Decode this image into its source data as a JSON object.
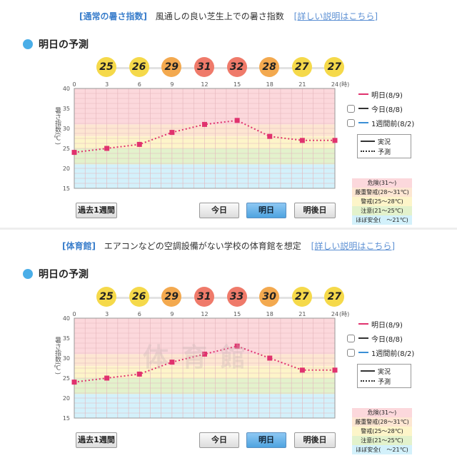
{
  "panels": [
    {
      "header": {
        "tag": "[通常の暑さ指数]",
        "desc": "風通しの良い芝生上での暑さ指数",
        "link": "[詳しい説明はこちら]"
      },
      "section_title": "明日の予測",
      "badges": [
        {
          "value": "25",
          "color": "#f5d94a"
        },
        {
          "value": "26",
          "color": "#f5d94a"
        },
        {
          "value": "29",
          "color": "#f3a94f"
        },
        {
          "value": "31",
          "color": "#ef7a6a"
        },
        {
          "value": "32",
          "color": "#ef7a6a"
        },
        {
          "value": "28",
          "color": "#f3a94f"
        },
        {
          "value": "27",
          "color": "#f5d94a"
        },
        {
          "value": "27",
          "color": "#f5d94a"
        }
      ],
      "ylabel": "暑さ指数(℃)",
      "xunit": "(時)",
      "watermark": "",
      "legend": {
        "tomorrow": "明日(8/9)",
        "today": "今日(8/8)",
        "weekago": "1週間前(8/2)"
      },
      "key": {
        "actual": "実況",
        "forecast": "予測"
      },
      "levels": [
        "危険(31～)",
        "厳重警戒(28～31℃)",
        "警戒(25～28℃)",
        "注意(21～25℃)",
        "ほぼ安全(　～21℃)"
      ],
      "buttons": {
        "past_week": "過去1週間",
        "today": "今日",
        "tomorrow": "明日",
        "day_after": "明後日"
      }
    },
    {
      "header": {
        "tag": "[体育館]",
        "desc": "エアコンなどの空調設備がない学校の体育館を想定",
        "link": "[詳しい説明はこちら]"
      },
      "section_title": "明日の予測",
      "badges": [
        {
          "value": "25",
          "color": "#f5d94a"
        },
        {
          "value": "26",
          "color": "#f5d94a"
        },
        {
          "value": "29",
          "color": "#f3a94f"
        },
        {
          "value": "31",
          "color": "#ef7a6a"
        },
        {
          "value": "33",
          "color": "#ef7a6a"
        },
        {
          "value": "30",
          "color": "#f3a94f"
        },
        {
          "value": "27",
          "color": "#f5d94a"
        },
        {
          "value": "27",
          "color": "#f5d94a"
        }
      ],
      "ylabel": "暑さ指数(℃)",
      "xunit": "(時)",
      "watermark": "体育館",
      "legend": {
        "tomorrow": "明日(8/9)",
        "today": "今日(8/8)",
        "weekago": "1週間前(8/2)"
      },
      "key": {
        "actual": "実況",
        "forecast": "予測"
      },
      "levels": [
        "危険(31～)",
        "厳重警戒(28～31℃)",
        "警戒(25～28℃)",
        "注意(21～25℃)",
        "ほぼ安全(　～21℃)"
      ],
      "buttons": {
        "past_week": "過去1週間",
        "today": "今日",
        "tomorrow": "明日",
        "day_after": "明後日"
      }
    }
  ],
  "chart_data": [
    {
      "type": "line",
      "x": [
        0,
        3,
        6,
        9,
        12,
        15,
        18,
        21,
        24
      ],
      "xticks": [
        "0",
        "3",
        "6",
        "9",
        "12",
        "15",
        "18",
        "21",
        "24"
      ],
      "yticks": [
        "15",
        "20",
        "25",
        "30",
        "35",
        "40"
      ],
      "ylim": [
        15,
        40
      ],
      "series": [
        {
          "name": "明日(8/9)",
          "color": "#e0326e",
          "values": [
            24,
            25,
            26,
            29,
            31,
            32,
            28,
            27,
            27
          ]
        }
      ],
      "bands": [
        {
          "from": 31,
          "to": 40,
          "color": "#fcd8dc"
        },
        {
          "from": 28,
          "to": 31,
          "color": "#fde6d2"
        },
        {
          "from": 25,
          "to": 28,
          "color": "#fdf5c9"
        },
        {
          "from": 21,
          "to": 25,
          "color": "#e3f2cc"
        },
        {
          "from": 15,
          "to": 21,
          "color": "#d3f1fb"
        }
      ],
      "grid": true
    },
    {
      "type": "line",
      "x": [
        0,
        3,
        6,
        9,
        12,
        15,
        18,
        21,
        24
      ],
      "xticks": [
        "0",
        "3",
        "6",
        "9",
        "12",
        "15",
        "18",
        "21",
        "24"
      ],
      "yticks": [
        "15",
        "20",
        "25",
        "30",
        "35",
        "40"
      ],
      "ylim": [
        15,
        40
      ],
      "series": [
        {
          "name": "明日(8/9)",
          "color": "#e0326e",
          "values": [
            24,
            25,
            26,
            29,
            31,
            33,
            30,
            27,
            27
          ]
        }
      ],
      "bands": [
        {
          "from": 31,
          "to": 40,
          "color": "#fcd8dc"
        },
        {
          "from": 28,
          "to": 31,
          "color": "#fde6d2"
        },
        {
          "from": 25,
          "to": 28,
          "color": "#fdf5c9"
        },
        {
          "from": 21,
          "to": 25,
          "color": "#e3f2cc"
        },
        {
          "from": 15,
          "to": 21,
          "color": "#d3f1fb"
        }
      ],
      "grid": true
    }
  ],
  "level_colors": [
    "#fcd8dc",
    "#fde6d2",
    "#fdf5c9",
    "#e3f2cc",
    "#d3f1fb"
  ],
  "legend_colors": {
    "tomorrow": "#e0326e",
    "weekago": "#3a8fd6"
  }
}
